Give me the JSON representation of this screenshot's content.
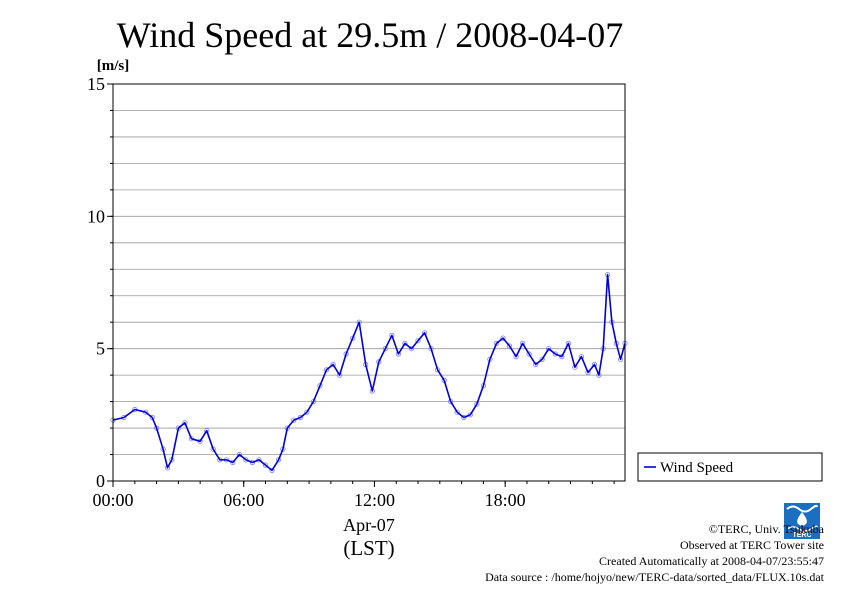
{
  "chart_data": {
    "type": "scatter",
    "title": "Wind Speed at 29.5m / 2008-04-07",
    "ylabel": "[m/s]",
    "xlabel_date": "Apr-07",
    "xlabel_zone": "(LST)",
    "xlim": [
      0,
      23.5
    ],
    "ylim": [
      0,
      15
    ],
    "x_ticks": [
      {
        "value": 0,
        "label": "00:00"
      },
      {
        "value": 6,
        "label": "06:00"
      },
      {
        "value": 12,
        "label": "12:00"
      },
      {
        "value": 18,
        "label": "18:00"
      }
    ],
    "y_ticks": [
      {
        "value": 0,
        "label": "0"
      },
      {
        "value": 5,
        "label": "5"
      },
      {
        "value": 10,
        "label": "10"
      },
      {
        "value": 15,
        "label": "15"
      }
    ],
    "grid": true,
    "legend": {
      "position": "right",
      "entries": [
        "Wind Speed"
      ]
    },
    "colors": {
      "line": "#0000dd",
      "points": "#7a7aff"
    },
    "series": [
      {
        "name": "Wind Speed",
        "x": [
          0,
          0.5,
          1,
          1.5,
          1.8,
          2,
          2.3,
          2.5,
          2.7,
          3,
          3.3,
          3.6,
          4,
          4.3,
          4.6,
          4.9,
          5.2,
          5.5,
          5.8,
          6.1,
          6.4,
          6.7,
          7,
          7.3,
          7.6,
          7.8,
          8,
          8.3,
          8.6,
          8.9,
          9.2,
          9.5,
          9.8,
          10.1,
          10.4,
          10.7,
          11,
          11.3,
          11.6,
          11.9,
          12.2,
          12.5,
          12.8,
          13.1,
          13.4,
          13.7,
          14,
          14.3,
          14.6,
          14.9,
          15.2,
          15.5,
          15.8,
          16.1,
          16.4,
          16.7,
          17,
          17.3,
          17.6,
          17.9,
          18.2,
          18.5,
          18.8,
          19.1,
          19.4,
          19.7,
          20,
          20.3,
          20.6,
          20.9,
          21.2,
          21.5,
          21.8,
          22.1,
          22.3,
          22.5,
          22.7,
          22.9,
          23.1,
          23.3,
          23.5
        ],
        "values": [
          2.3,
          2.4,
          2.7,
          2.6,
          2.4,
          2.0,
          1.2,
          0.5,
          0.8,
          2.0,
          2.2,
          1.6,
          1.5,
          1.9,
          1.2,
          0.8,
          0.8,
          0.7,
          1.0,
          0.8,
          0.7,
          0.8,
          0.6,
          0.4,
          0.8,
          1.2,
          2.0,
          2.3,
          2.4,
          2.6,
          3.0,
          3.6,
          4.2,
          4.4,
          4.0,
          4.8,
          5.4,
          6.0,
          4.4,
          3.4,
          4.5,
          5.0,
          5.5,
          4.8,
          5.2,
          5.0,
          5.3,
          5.6,
          5.0,
          4.2,
          3.8,
          3.0,
          2.6,
          2.4,
          2.5,
          2.9,
          3.6,
          4.6,
          5.2,
          5.4,
          5.1,
          4.7,
          5.2,
          4.8,
          4.4,
          4.6,
          5.0,
          4.8,
          4.7,
          5.2,
          4.3,
          4.7,
          4.1,
          4.4,
          4.0,
          5.0,
          7.8,
          6.0,
          5.2,
          4.6,
          5.2
        ]
      }
    ]
  },
  "credits": {
    "copyright": "©TERC, Univ. Tsukuba",
    "observed": "Observed at TERC Tower site",
    "created": "Created Automatically at 2008-04-07/23:55:47",
    "source": "Data source : /home/hojyo/new/TERC-data/sorted_data/FLUX.10s.dat"
  },
  "logo": {
    "text": "TERC"
  }
}
